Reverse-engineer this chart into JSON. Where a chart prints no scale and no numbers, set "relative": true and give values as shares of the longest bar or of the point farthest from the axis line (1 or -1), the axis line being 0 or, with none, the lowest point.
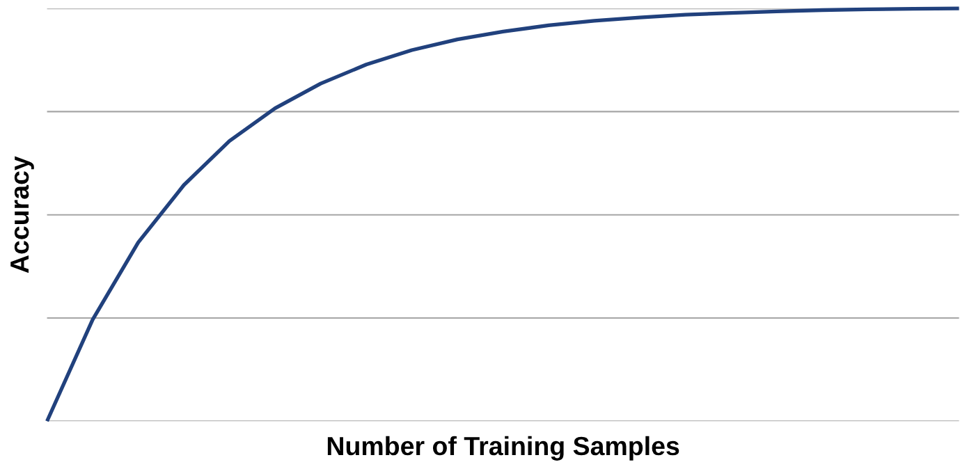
{
  "chart_data": {
    "type": "line",
    "relative": true,
    "xlabel": "Number of Training Samples",
    "ylabel": "Accuracy",
    "grid": "y",
    "categories": [
      null,
      null,
      null,
      null,
      null,
      null,
      null,
      null,
      null,
      null,
      null,
      null,
      null,
      null,
      null,
      null,
      null,
      null,
      null,
      null,
      null
    ],
    "series": [
      {
        "color": "#21417d",
        "values": [
          0,
          0.246,
          0.433,
          0.572,
          0.679,
          0.758,
          0.818,
          0.864,
          0.899,
          0.925,
          0.944,
          0.959,
          0.97,
          0.978,
          0.985,
          0.989,
          0.993,
          0.996,
          0.998,
          0.999,
          1
        ]
      }
    ]
  }
}
